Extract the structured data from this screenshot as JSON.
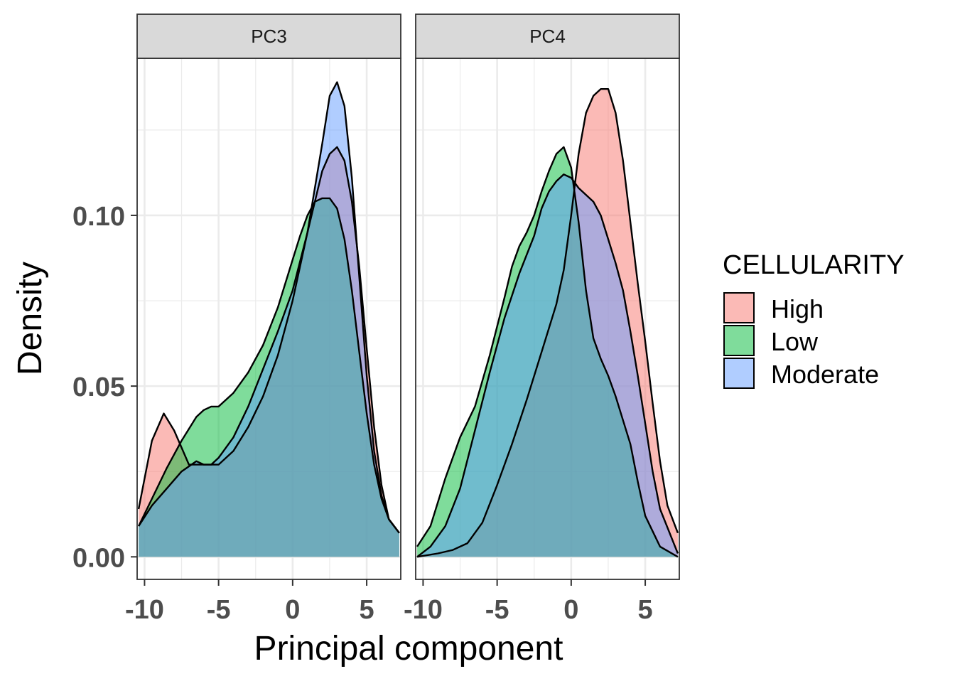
{
  "chart_data": {
    "type": "area",
    "subtype": "faceted density plot",
    "xlabel": "Principal component",
    "ylabel": "Density",
    "xlim": [
      -10.5,
      7.3
    ],
    "ylim": [
      0,
      0.14
    ],
    "x_ticks": [
      -10,
      -5,
      0,
      5
    ],
    "x_tick_labels": [
      "-10",
      "-5",
      "0",
      "5"
    ],
    "y_ticks": [
      0,
      0.05,
      0.1
    ],
    "y_tick_labels": [
      "0.00",
      "0.05",
      "0.10"
    ],
    "grid": true,
    "legend": {
      "title": "CELLULARITY",
      "position": "right",
      "entries": [
        {
          "name": "High",
          "color": "#F8766D"
        },
        {
          "name": "Low",
          "color": "#00BA38"
        },
        {
          "name": "Moderate",
          "color": "#619CFF"
        }
      ]
    },
    "fill_alpha": 0.5,
    "panels": [
      {
        "label": "PC3",
        "series": [
          {
            "name": "High",
            "color": "#F8766D",
            "x": [
              -10.4,
              -9.5,
              -8.7,
              -8,
              -7,
              -6,
              -5,
              -4,
              -3,
              -2,
              -1,
              0,
              1,
              2,
              2.5,
              3,
              3.5,
              4,
              4.5,
              5,
              5.5,
              6,
              6.5,
              7.2
            ],
            "y": [
              0.014,
              0.034,
              0.042,
              0.037,
              0.027,
              0.027,
              0.027,
              0.031,
              0.038,
              0.047,
              0.059,
              0.075,
              0.095,
              0.113,
              0.118,
              0.12,
              0.116,
              0.104,
              0.085,
              0.061,
              0.038,
              0.021,
              0.011,
              0.007
            ]
          },
          {
            "name": "Low",
            "color": "#00BA38",
            "x": [
              -10.4,
              -9.5,
              -8.5,
              -7.5,
              -6.5,
              -6,
              -5.5,
              -5,
              -4,
              -3,
              -2,
              -1,
              0,
              0.5,
              1,
              1.5,
              2,
              2.5,
              3,
              3.5,
              4,
              4.5,
              5,
              5.5,
              6,
              6.5,
              7.2
            ],
            "y": [
              0.009,
              0.017,
              0.026,
              0.034,
              0.041,
              0.043,
              0.044,
              0.044,
              0.048,
              0.054,
              0.062,
              0.073,
              0.087,
              0.094,
              0.1,
              0.104,
              0.105,
              0.105,
              0.102,
              0.093,
              0.078,
              0.06,
              0.042,
              0.027,
              0.017,
              0.011,
              0.007
            ]
          },
          {
            "name": "Moderate",
            "color": "#619CFF",
            "x": [
              -10.4,
              -9.5,
              -8.5,
              -7.5,
              -6.5,
              -6,
              -5.5,
              -5,
              -4.5,
              -4,
              -3,
              -2,
              -1,
              0,
              1,
              2,
              2.5,
              3,
              3.5,
              4,
              4.5,
              5,
              5.5,
              6,
              6.5,
              7.2
            ],
            "y": [
              0.009,
              0.015,
              0.02,
              0.025,
              0.028,
              0.027,
              0.027,
              0.029,
              0.032,
              0.035,
              0.044,
              0.055,
              0.066,
              0.078,
              0.095,
              0.121,
              0.135,
              0.139,
              0.132,
              0.111,
              0.082,
              0.053,
              0.031,
              0.018,
              0.011,
              0.007
            ]
          }
        ]
      },
      {
        "label": "PC4",
        "series": [
          {
            "name": "High",
            "color": "#F8766D",
            "x": [
              -10.4,
              -9,
              -8,
              -7,
              -6,
              -5,
              -4,
              -3,
              -2,
              -1.5,
              -1,
              -0.5,
              0,
              0.5,
              1,
              1.5,
              2,
              2.5,
              3,
              3.5,
              4,
              4.5,
              5,
              5.5,
              6,
              6.5,
              7.2
            ],
            "y": [
              0,
              0.001,
              0.002,
              0.004,
              0.01,
              0.021,
              0.033,
              0.046,
              0.06,
              0.067,
              0.074,
              0.084,
              0.1,
              0.118,
              0.13,
              0.135,
              0.137,
              0.137,
              0.13,
              0.116,
              0.098,
              0.08,
              0.063,
              0.045,
              0.028,
              0.015,
              0.007
            ]
          },
          {
            "name": "Low",
            "color": "#00BA38",
            "x": [
              -10.4,
              -9.5,
              -8.5,
              -7.5,
              -6.5,
              -5.5,
              -4.5,
              -4,
              -3.5,
              -3,
              -2.5,
              -2,
              -1.5,
              -1,
              -0.5,
              0,
              0.5,
              1,
              1.5,
              2,
              2.5,
              3,
              3.5,
              4,
              4.5,
              5,
              6,
              7.2
            ],
            "y": [
              0.003,
              0.009,
              0.023,
              0.035,
              0.044,
              0.059,
              0.076,
              0.085,
              0.091,
              0.095,
              0.1,
              0.107,
              0.113,
              0.118,
              0.12,
              0.114,
              0.098,
              0.078,
              0.064,
              0.058,
              0.053,
              0.047,
              0.04,
              0.033,
              0.022,
              0.012,
              0.003,
              0
            ]
          },
          {
            "name": "Moderate",
            "color": "#619CFF",
            "x": [
              -10.4,
              -9.5,
              -8.5,
              -7.5,
              -6.5,
              -5.5,
              -4.5,
              -3.5,
              -2.5,
              -2,
              -1.5,
              -1,
              -0.5,
              0,
              0.5,
              1,
              1.5,
              2,
              2.5,
              3,
              3.5,
              4,
              4.5,
              5,
              5.5,
              6,
              7.2
            ],
            "y": [
              0,
              0.003,
              0.009,
              0.02,
              0.037,
              0.054,
              0.07,
              0.083,
              0.094,
              0.102,
              0.107,
              0.11,
              0.112,
              0.111,
              0.108,
              0.106,
              0.104,
              0.1,
              0.093,
              0.086,
              0.078,
              0.066,
              0.053,
              0.039,
              0.025,
              0.014,
              0.001
            ]
          }
        ]
      }
    ]
  }
}
